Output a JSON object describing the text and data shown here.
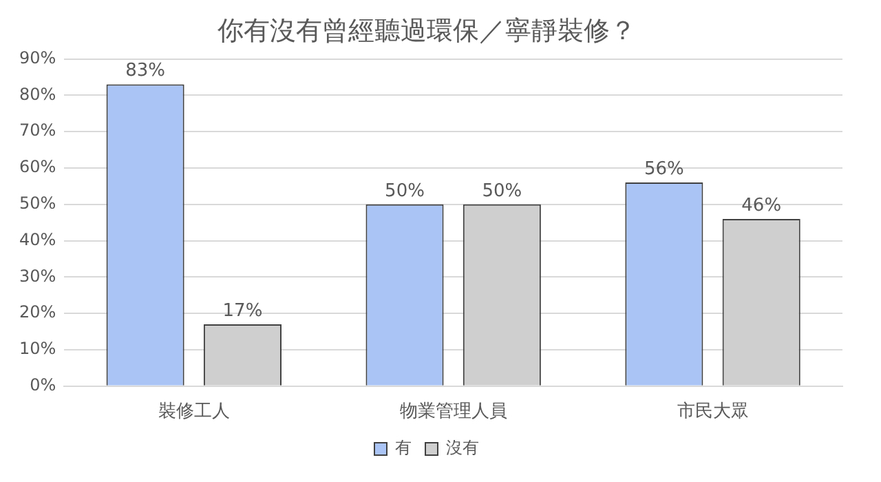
{
  "chart_data": {
    "type": "bar",
    "title": "你有沒有曾經聽過環保／寧靜裝修？",
    "categories": [
      "裝修工人",
      "物業管理人員",
      "市民大眾"
    ],
    "series": [
      {
        "name": "有",
        "color": "#a9c4f5",
        "values": [
          83,
          50,
          56
        ]
      },
      {
        "name": "沒有",
        "color": "#cfcfcf",
        "values": [
          17,
          50,
          46
        ]
      }
    ],
    "ylim": [
      0,
      90
    ],
    "yticks": [
      {
        "value": 0,
        "label": "0%"
      },
      {
        "value": 10,
        "label": "10%"
      },
      {
        "value": 20,
        "label": "20%"
      },
      {
        "value": 30,
        "label": "30%"
      },
      {
        "value": 40,
        "label": "40%"
      },
      {
        "value": 50,
        "label": "50%"
      },
      {
        "value": 60,
        "label": "60%"
      },
      {
        "value": 70,
        "label": "70%"
      },
      {
        "value": 80,
        "label": "80%"
      },
      {
        "value": 90,
        "label": "90%"
      }
    ],
    "value_labels": [
      [
        "83%",
        "50%",
        "56%"
      ],
      [
        "17%",
        "50%",
        "46%"
      ]
    ],
    "grid": "y",
    "legend": "bottom"
  }
}
